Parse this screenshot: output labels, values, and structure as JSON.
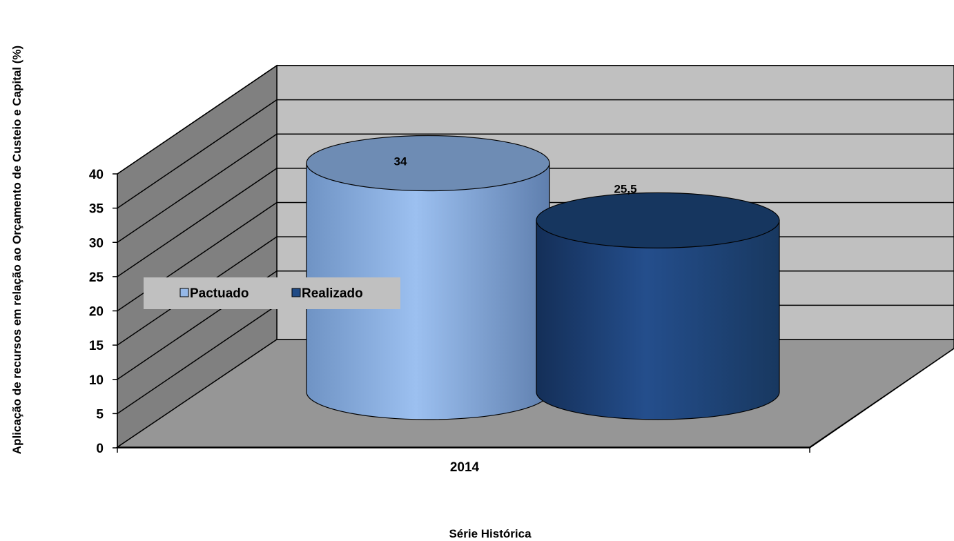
{
  "chart_data": {
    "type": "bar",
    "style": "3d-cylinder",
    "categories": [
      "2014"
    ],
    "series": [
      {
        "name": "Pactuado",
        "values": [
          34
        ],
        "data_label": "34",
        "color": "#95B8E8"
      },
      {
        "name": "Realizado",
        "values": [
          25.5
        ],
        "data_label": "25,5",
        "color": "#1F4A85"
      }
    ],
    "title": "",
    "xlabel": "Série Histórica",
    "ylabel": "Aplicação de recursos em relação ao Orçamento de Custeio e Capital (%)",
    "ylim": [
      0,
      40
    ],
    "yticks": [
      "0",
      "5",
      "10",
      "15",
      "20",
      "25",
      "30",
      "35",
      "40"
    ],
    "grid": true,
    "legend_position": "left-middle",
    "colors": {
      "back_wall": "#C0C0C0",
      "side_wall": "#808080",
      "floor": "#969696"
    }
  }
}
